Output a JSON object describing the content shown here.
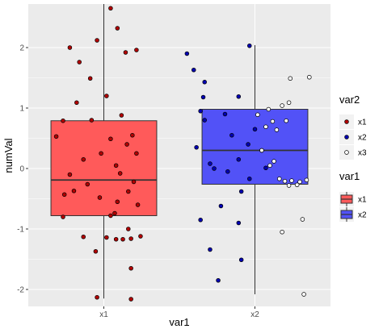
{
  "chart_data": {
    "type": "boxplot",
    "xlabel": "var1",
    "ylabel": "numVal",
    "categories": [
      "x1",
      "x2"
    ],
    "ylim": [
      -2.28,
      2.72
    ],
    "yticks": [
      -2,
      -1,
      0,
      1,
      2
    ],
    "ytick_labels": [
      "-2",
      "-1",
      "0",
      "1",
      "2"
    ],
    "grid": true,
    "boxes": [
      {
        "category": "x1",
        "q1": -0.78,
        "median": -0.19,
        "q3": 0.79,
        "whisker_low": -2.15,
        "whisker_high": 2.72,
        "fill": "#ff5a5a"
      },
      {
        "category": "x2",
        "q1": -0.26,
        "median": 0.3,
        "q3": 0.98,
        "whisker_low": -2.08,
        "whisker_high": 2.04,
        "fill": "#5252f7"
      }
    ],
    "points": [
      {
        "category": "x1",
        "group": "x1",
        "jitter": 0.05,
        "value": 2.65
      },
      {
        "category": "x1",
        "group": "x1",
        "jitter": 0.1,
        "value": 2.32
      },
      {
        "category": "x1",
        "group": "x1",
        "jitter": -0.25,
        "value": 2.0
      },
      {
        "category": "x1",
        "group": "x1",
        "jitter": -0.05,
        "value": 2.12
      },
      {
        "category": "x1",
        "group": "x1",
        "jitter": 0.24,
        "value": 1.96
      },
      {
        "category": "x1",
        "group": "x1",
        "jitter": -0.18,
        "value": 1.76
      },
      {
        "category": "x1",
        "group": "x1",
        "jitter": -0.1,
        "value": 1.49
      },
      {
        "category": "x1",
        "group": "x1",
        "jitter": 0.16,
        "value": 1.92
      },
      {
        "category": "x1",
        "group": "x1",
        "jitter": -0.2,
        "value": 1.09
      },
      {
        "category": "x1",
        "group": "x1",
        "jitter": 0.02,
        "value": 1.2
      },
      {
        "category": "x1",
        "group": "x1",
        "jitter": -0.3,
        "value": 0.79
      },
      {
        "category": "x1",
        "group": "x1",
        "jitter": -0.09,
        "value": 0.8
      },
      {
        "category": "x1",
        "group": "x1",
        "jitter": 0.13,
        "value": 0.88
      },
      {
        "category": "x1",
        "group": "x1",
        "jitter": 0.21,
        "value": 0.55
      },
      {
        "category": "x1",
        "group": "x1",
        "jitter": -0.35,
        "value": 0.53
      },
      {
        "category": "x1",
        "group": "x1",
        "jitter": 0.05,
        "value": 0.49
      },
      {
        "category": "x1",
        "group": "x1",
        "jitter": 0.17,
        "value": 0.4
      },
      {
        "category": "x1",
        "group": "x1",
        "jitter": 0.24,
        "value": 0.25
      },
      {
        "category": "x1",
        "group": "x1",
        "jitter": -0.02,
        "value": 0.25
      },
      {
        "category": "x1",
        "group": "x1",
        "jitter": -0.15,
        "value": 0.15
      },
      {
        "category": "x1",
        "group": "x1",
        "jitter": 0.09,
        "value": 0.05
      },
      {
        "category": "x1",
        "group": "x1",
        "jitter": -0.25,
        "value": -0.1
      },
      {
        "category": "x1",
        "group": "x1",
        "jitter": 0.12,
        "value": -0.08
      },
      {
        "category": "x1",
        "group": "x1",
        "jitter": 0.22,
        "value": -0.22
      },
      {
        "category": "x1",
        "group": "x1",
        "jitter": -0.12,
        "value": -0.26
      },
      {
        "category": "x1",
        "group": "x1",
        "jitter": -0.29,
        "value": -0.43
      },
      {
        "category": "x1",
        "group": "x1",
        "jitter": -0.22,
        "value": -0.37
      },
      {
        "category": "x1",
        "group": "x1",
        "jitter": 0.18,
        "value": -0.38
      },
      {
        "category": "x1",
        "group": "x1",
        "jitter": -0.03,
        "value": -0.48
      },
      {
        "category": "x1",
        "group": "x1",
        "jitter": 0.1,
        "value": -0.55
      },
      {
        "category": "x1",
        "group": "x1",
        "jitter": 0.25,
        "value": -0.6
      },
      {
        "category": "x1",
        "group": "x1",
        "jitter": -0.3,
        "value": -0.8
      },
      {
        "category": "x1",
        "group": "x1",
        "jitter": 0.05,
        "value": -0.78
      },
      {
        "category": "x1",
        "group": "x1",
        "jitter": 0.08,
        "value": -0.74
      },
      {
        "category": "x1",
        "group": "x1",
        "jitter": 0.18,
        "value": -1.0
      },
      {
        "category": "x1",
        "group": "x1",
        "jitter": 0.27,
        "value": -1.12
      },
      {
        "category": "x1",
        "group": "x1",
        "jitter": -0.15,
        "value": -1.13
      },
      {
        "category": "x1",
        "group": "x1",
        "jitter": 0.02,
        "value": -1.14
      },
      {
        "category": "x1",
        "group": "x1",
        "jitter": 0.09,
        "value": -1.17
      },
      {
        "category": "x1",
        "group": "x1",
        "jitter": 0.14,
        "value": -1.17
      },
      {
        "category": "x1",
        "group": "x1",
        "jitter": 0.2,
        "value": -1.16
      },
      {
        "category": "x1",
        "group": "x1",
        "jitter": -0.06,
        "value": -1.37
      },
      {
        "category": "x1",
        "group": "x1",
        "jitter": 0.2,
        "value": -1.65
      },
      {
        "category": "x1",
        "group": "x1",
        "jitter": -0.05,
        "value": -2.13
      },
      {
        "category": "x1",
        "group": "x1",
        "jitter": 0.2,
        "value": -2.16
      },
      {
        "category": "x2",
        "group": "x2",
        "jitter": -0.04,
        "value": 2.03
      },
      {
        "category": "x2",
        "group": "x2",
        "jitter": -0.5,
        "value": 1.9
      },
      {
        "category": "x2",
        "group": "x2",
        "jitter": -0.45,
        "value": 1.63
      },
      {
        "category": "x2",
        "group": "x2",
        "jitter": -0.37,
        "value": 1.43
      },
      {
        "category": "x2",
        "group": "x2",
        "jitter": -0.38,
        "value": 1.18
      },
      {
        "category": "x2",
        "group": "x2",
        "jitter": -0.12,
        "value": 1.19
      },
      {
        "category": "x2",
        "group": "x2",
        "jitter": -0.4,
        "value": 0.95
      },
      {
        "category": "x2",
        "group": "x2",
        "jitter": -0.37,
        "value": 0.8
      },
      {
        "category": "x2",
        "group": "x2",
        "jitter": -0.22,
        "value": 0.9
      },
      {
        "category": "x2",
        "group": "x2",
        "jitter": -0.17,
        "value": 0.55
      },
      {
        "category": "x2",
        "group": "x2",
        "jitter": 0.0,
        "value": 0.65
      },
      {
        "category": "x2",
        "group": "x2",
        "jitter": -0.43,
        "value": 0.35
      },
      {
        "category": "x2",
        "group": "x2",
        "jitter": -0.05,
        "value": 0.4
      },
      {
        "category": "x2",
        "group": "x2",
        "jitter": 0.05,
        "value": 0.3
      },
      {
        "category": "x2",
        "group": "x2",
        "jitter": -0.33,
        "value": 0.08
      },
      {
        "category": "x2",
        "group": "x2",
        "jitter": -0.12,
        "value": 0.15
      },
      {
        "category": "x2",
        "group": "x2",
        "jitter": -0.3,
        "value": 0.0
      },
      {
        "category": "x2",
        "group": "x2",
        "jitter": -0.2,
        "value": -0.05
      },
      {
        "category": "x2",
        "group": "x2",
        "jitter": 0.08,
        "value": 0.01
      },
      {
        "category": "x2",
        "group": "x2",
        "jitter": -0.04,
        "value": -0.17
      },
      {
        "category": "x2",
        "group": "x2",
        "jitter": -0.1,
        "value": -0.38
      },
      {
        "category": "x2",
        "group": "x2",
        "jitter": -0.25,
        "value": -0.62
      },
      {
        "category": "x2",
        "group": "x2",
        "jitter": -0.4,
        "value": -0.85
      },
      {
        "category": "x2",
        "group": "x2",
        "jitter": -0.12,
        "value": -0.9
      },
      {
        "category": "x2",
        "group": "x2",
        "jitter": -0.33,
        "value": -1.34
      },
      {
        "category": "x2",
        "group": "x2",
        "jitter": -0.1,
        "value": -1.51
      },
      {
        "category": "x2",
        "group": "x2",
        "jitter": -0.27,
        "value": -1.85
      },
      {
        "category": "x2",
        "group": "x3",
        "jitter": 0.4,
        "value": 1.51
      },
      {
        "category": "x2",
        "group": "x3",
        "jitter": 0.26,
        "value": 1.49
      },
      {
        "category": "x2",
        "group": "x3",
        "jitter": 0.25,
        "value": 1.09
      },
      {
        "category": "x2",
        "group": "x3",
        "jitter": 0.2,
        "value": 1.04
      },
      {
        "category": "x2",
        "group": "x3",
        "jitter": 0.1,
        "value": 0.98
      },
      {
        "category": "x2",
        "group": "x3",
        "jitter": 0.02,
        "value": 0.89
      },
      {
        "category": "x2",
        "group": "x3",
        "jitter": 0.23,
        "value": 0.79
      },
      {
        "category": "x2",
        "group": "x3",
        "jitter": 0.13,
        "value": 0.78
      },
      {
        "category": "x2",
        "group": "x3",
        "jitter": 0.08,
        "value": 0.69
      },
      {
        "category": "x2",
        "group": "x3",
        "jitter": 0.16,
        "value": 0.64
      },
      {
        "category": "x2",
        "group": "x3",
        "jitter": 0.05,
        "value": 0.3
      },
      {
        "category": "x2",
        "group": "x3",
        "jitter": 0.14,
        "value": 0.12
      },
      {
        "category": "x2",
        "group": "x3",
        "jitter": 0.11,
        "value": 0.05
      },
      {
        "category": "x2",
        "group": "x3",
        "jitter": 0.18,
        "value": -0.17
      },
      {
        "category": "x2",
        "group": "x3",
        "jitter": 0.22,
        "value": -0.21
      },
      {
        "category": "x2",
        "group": "x3",
        "jitter": 0.27,
        "value": -0.2
      },
      {
        "category": "x2",
        "group": "x3",
        "jitter": 0.33,
        "value": -0.22
      },
      {
        "category": "x2",
        "group": "x3",
        "jitter": 0.38,
        "value": -0.19
      },
      {
        "category": "x2",
        "group": "x3",
        "jitter": 0.25,
        "value": -0.28
      },
      {
        "category": "x2",
        "group": "x3",
        "jitter": 0.31,
        "value": -0.27
      },
      {
        "category": "x2",
        "group": "x3",
        "jitter": 0.35,
        "value": -0.84
      },
      {
        "category": "x2",
        "group": "x3",
        "jitter": 0.2,
        "value": -1.05
      },
      {
        "category": "x2",
        "group": "x3",
        "jitter": 0.36,
        "value": -2.08
      }
    ],
    "legends": [
      {
        "title": "var2",
        "kind": "point",
        "entries": [
          {
            "label": "x1",
            "color": "#b30000"
          },
          {
            "label": "x2",
            "color": "#0000b3"
          },
          {
            "label": "x3",
            "color": "#ffffff"
          }
        ]
      },
      {
        "title": "var1",
        "kind": "box",
        "entries": [
          {
            "label": "x1",
            "color": "#ff5a5a"
          },
          {
            "label": "x2",
            "color": "#5252f7"
          }
        ]
      }
    ],
    "legend_position": "right"
  }
}
